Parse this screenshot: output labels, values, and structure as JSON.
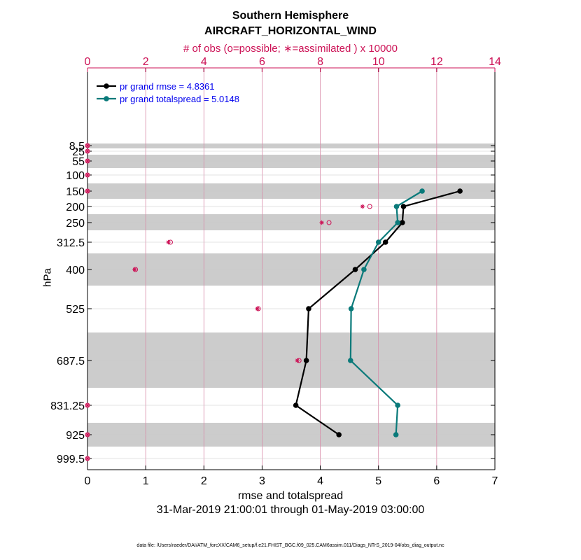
{
  "chart_data": {
    "type": "line",
    "title": "Southern Hemisphere",
    "subtitle": "AIRCRAFT_HORIZONTAL_WIND",
    "top_axis_label": "# of obs (o=possible; ∗=assimilated ) x 10000",
    "xlabel": "rmse and totalspread",
    "ylabel": "hPa",
    "date_range": "31-Mar-2019 21:00:01 through 01-May-2019 03:00:00",
    "footnote": "data file: /Users/raeder/DAI/ATM_forcXX/CAM6_setup/f.e21.FHIST_BGC.f09_025.CAM6assim.011/Diags_NTrS_2019-04/obs_diag_output.nc",
    "xlim": [
      0,
      7
    ],
    "xticks": [
      "0",
      "1",
      "2",
      "3",
      "4",
      "5",
      "6",
      "7"
    ],
    "top_xlim": [
      0,
      14
    ],
    "top_xticks": [
      "0",
      "2",
      "4",
      "6",
      "8",
      "10",
      "12",
      "14"
    ],
    "levels": [
      8.5,
      25,
      55,
      100,
      150,
      200,
      250,
      312.5,
      400,
      525,
      687.5,
      831.25,
      925,
      999.5
    ],
    "level_labels": [
      "8.5",
      "25",
      "55",
      "100",
      "150",
      "200",
      "250",
      "312.5",
      "400",
      "525",
      "687.5",
      "831.25",
      "925",
      "999.5"
    ],
    "shaded_band_levels": [
      8.5,
      55,
      150,
      250,
      400,
      687.5,
      925
    ],
    "series": [
      {
        "name": "pr grand rmse = 4.8361",
        "color": "#000000",
        "levels": [
          150,
          200,
          250,
          312.5,
          400,
          525,
          687.5,
          831.25,
          925
        ],
        "values": [
          6.4,
          5.43,
          5.41,
          5.12,
          4.6,
          3.8,
          3.76,
          3.58,
          4.32
        ]
      },
      {
        "name": "pr grand totalspread = 5.0148",
        "color": "#0a7a7a",
        "levels": [
          150,
          200,
          250,
          312.5,
          400,
          525,
          687.5,
          831.25,
          925
        ],
        "values": [
          5.75,
          5.31,
          5.33,
          5.0,
          4.75,
          4.53,
          4.52,
          5.33,
          5.3
        ]
      }
    ],
    "obs_color": "#cc1155",
    "obs_possible": {
      "levels": [
        8.5,
        25,
        55,
        100,
        150,
        200,
        250,
        312.5,
        400,
        525,
        687.5,
        831.25,
        925,
        999.5
      ],
      "values": [
        0,
        0,
        0,
        0,
        0,
        9.7,
        8.3,
        2.85,
        1.65,
        5.87,
        7.27,
        0,
        0,
        0
      ]
    },
    "obs_assimilated": {
      "levels": [
        8.5,
        25,
        55,
        100,
        150,
        200,
        250,
        312.5,
        400,
        525,
        687.5,
        831.25,
        925,
        999.5
      ],
      "values": [
        0,
        0,
        0,
        0,
        0,
        9.45,
        8.05,
        2.78,
        1.62,
        5.84,
        7.21,
        0,
        0,
        0
      ]
    }
  }
}
